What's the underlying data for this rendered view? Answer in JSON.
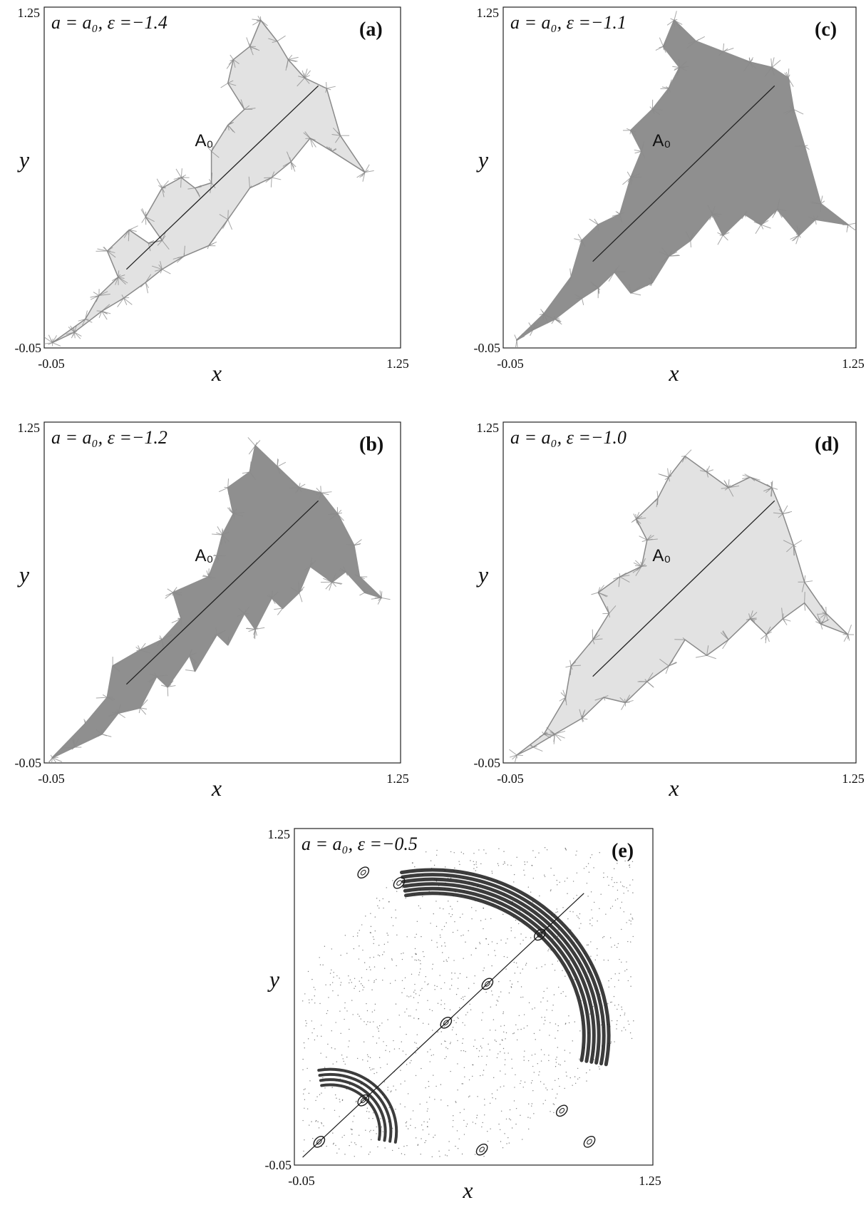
{
  "figure": {
    "note": ""
  },
  "chart_data": [
    {
      "type": "scatter",
      "panel_label": "(a)",
      "annotation": "a = a₀, ε =−1.4",
      "attractor_label": "A₀",
      "xlabel": "x",
      "ylabel": "y",
      "xlim": [
        -0.05,
        1.25
      ],
      "ylim": [
        -0.05,
        1.25
      ],
      "x_ticks": [
        "-0.05",
        "1.25"
      ],
      "y_ticks": [
        "-0.05",
        "1.25"
      ],
      "grid": false,
      "diagonal_segment": {
        "x": [
          0.25,
          0.95
        ],
        "y": [
          0.25,
          0.95
        ]
      },
      "series": [
        {
          "color": "#8a8a8a",
          "filled": false,
          "outline": [
            [
              -0.02,
              -0.03
            ],
            [
              0.1,
              0.06
            ],
            [
              0.15,
              0.15
            ],
            [
              0.22,
              0.22
            ],
            [
              0.18,
              0.32
            ],
            [
              0.26,
              0.4
            ],
            [
              0.33,
              0.35
            ],
            [
              0.38,
              0.36
            ],
            [
              0.32,
              0.45
            ],
            [
              0.38,
              0.56
            ],
            [
              0.45,
              0.6
            ],
            [
              0.5,
              0.56
            ],
            [
              0.56,
              0.58
            ],
            [
              0.56,
              0.7
            ],
            [
              0.62,
              0.8
            ],
            [
              0.68,
              0.86
            ],
            [
              0.62,
              0.96
            ],
            [
              0.64,
              1.05
            ],
            [
              0.7,
              1.1
            ],
            [
              0.74,
              1.2
            ],
            [
              0.8,
              1.12
            ],
            [
              0.84,
              1.05
            ],
            [
              0.9,
              0.98
            ],
            [
              0.98,
              0.94
            ],
            [
              1.03,
              0.76
            ],
            [
              1.12,
              0.62
            ],
            [
              1.0,
              0.7
            ],
            [
              0.92,
              0.75
            ],
            [
              0.85,
              0.66
            ],
            [
              0.78,
              0.6
            ],
            [
              0.7,
              0.56
            ],
            [
              0.62,
              0.44
            ],
            [
              0.55,
              0.34
            ],
            [
              0.46,
              0.3
            ],
            [
              0.38,
              0.25
            ],
            [
              0.32,
              0.2
            ],
            [
              0.24,
              0.14
            ],
            [
              0.16,
              0.09
            ],
            [
              0.06,
              0.01
            ]
          ]
        }
      ]
    },
    {
      "type": "scatter",
      "panel_label": "(b)",
      "annotation": "a = a₀, ε =−1.2",
      "attractor_label": "A₀",
      "xlabel": "x",
      "ylabel": "y",
      "xlim": [
        -0.05,
        1.25
      ],
      "ylim": [
        -0.05,
        1.25
      ],
      "x_ticks": [
        "-0.05",
        "1.25"
      ],
      "y_ticks": [
        "-0.05",
        "1.25"
      ],
      "grid": false,
      "diagonal_segment": {
        "x": [
          0.25,
          0.95
        ],
        "y": [
          0.25,
          0.95
        ]
      },
      "series": [
        {
          "color": "#8a8a8a",
          "filled": true,
          "outline": [
            [
              -0.02,
              -0.03
            ],
            [
              0.1,
              0.1
            ],
            [
              0.18,
              0.2
            ],
            [
              0.2,
              0.32
            ],
            [
              0.3,
              0.38
            ],
            [
              0.38,
              0.42
            ],
            [
              0.45,
              0.5
            ],
            [
              0.42,
              0.6
            ],
            [
              0.55,
              0.66
            ],
            [
              0.58,
              0.74
            ],
            [
              0.6,
              0.82
            ],
            [
              0.64,
              0.9
            ],
            [
              0.62,
              1.0
            ],
            [
              0.7,
              1.06
            ],
            [
              0.72,
              1.16
            ],
            [
              0.8,
              1.08
            ],
            [
              0.88,
              1.0
            ],
            [
              0.96,
              0.98
            ],
            [
              1.02,
              0.9
            ],
            [
              1.08,
              0.78
            ],
            [
              1.1,
              0.66
            ],
            [
              1.18,
              0.58
            ],
            [
              1.12,
              0.6
            ],
            [
              1.05,
              0.68
            ],
            [
              1.0,
              0.64
            ],
            [
              0.92,
              0.7
            ],
            [
              0.88,
              0.6
            ],
            [
              0.82,
              0.54
            ],
            [
              0.78,
              0.58
            ],
            [
              0.72,
              0.46
            ],
            [
              0.68,
              0.52
            ],
            [
              0.62,
              0.4
            ],
            [
              0.58,
              0.44
            ],
            [
              0.5,
              0.3
            ],
            [
              0.48,
              0.36
            ],
            [
              0.4,
              0.24
            ],
            [
              0.36,
              0.28
            ],
            [
              0.3,
              0.16
            ],
            [
              0.22,
              0.14
            ],
            [
              0.16,
              0.06
            ],
            [
              0.06,
              0.01
            ]
          ]
        }
      ]
    },
    {
      "type": "scatter",
      "panel_label": "(c)",
      "annotation": "a = a₀, ε =−1.1",
      "attractor_label": "A₀",
      "xlabel": "x",
      "ylabel": "y",
      "xlim": [
        -0.05,
        1.25
      ],
      "ylim": [
        -0.05,
        1.25
      ],
      "x_ticks": [
        "-0.05",
        "1.25"
      ],
      "y_ticks": [
        "-0.05",
        "1.25"
      ],
      "grid": false,
      "diagonal_segment": {
        "x": [
          0.28,
          0.95
        ],
        "y": [
          0.28,
          0.95
        ]
      },
      "series": [
        {
          "color": "#8a8a8a",
          "filled": true,
          "outline": [
            [
              0.0,
              -0.02
            ],
            [
              0.1,
              0.08
            ],
            [
              0.2,
              0.22
            ],
            [
              0.24,
              0.36
            ],
            [
              0.3,
              0.42
            ],
            [
              0.38,
              0.46
            ],
            [
              0.42,
              0.6
            ],
            [
              0.46,
              0.7
            ],
            [
              0.42,
              0.78
            ],
            [
              0.5,
              0.86
            ],
            [
              0.56,
              0.94
            ],
            [
              0.6,
              1.02
            ],
            [
              0.54,
              1.1
            ],
            [
              0.58,
              1.2
            ],
            [
              0.66,
              1.12
            ],
            [
              0.76,
              1.08
            ],
            [
              0.86,
              1.04
            ],
            [
              0.94,
              1.02
            ],
            [
              1.0,
              0.98
            ],
            [
              1.02,
              0.86
            ],
            [
              1.06,
              0.72
            ],
            [
              1.12,
              0.5
            ],
            [
              1.22,
              0.42
            ],
            [
              1.1,
              0.44
            ],
            [
              1.04,
              0.38
            ],
            [
              0.96,
              0.48
            ],
            [
              0.9,
              0.42
            ],
            [
              0.84,
              0.46
            ],
            [
              0.76,
              0.38
            ],
            [
              0.72,
              0.46
            ],
            [
              0.64,
              0.36
            ],
            [
              0.56,
              0.3
            ],
            [
              0.5,
              0.2
            ],
            [
              0.42,
              0.16
            ],
            [
              0.36,
              0.24
            ],
            [
              0.3,
              0.18
            ],
            [
              0.24,
              0.14
            ],
            [
              0.14,
              0.06
            ],
            [
              0.06,
              0.02
            ]
          ]
        }
      ]
    },
    {
      "type": "scatter",
      "panel_label": "(d)",
      "annotation": "a = a₀, ε =−1.0",
      "attractor_label": "A₀",
      "xlabel": "x",
      "ylabel": "y",
      "xlim": [
        -0.05,
        1.25
      ],
      "ylim": [
        -0.05,
        1.25
      ],
      "x_ticks": [
        "-0.05",
        "1.25"
      ],
      "y_ticks": [
        "-0.05",
        "1.25"
      ],
      "grid": false,
      "diagonal_segment": {
        "x": [
          0.28,
          0.95
        ],
        "y": [
          0.28,
          0.95
        ]
      },
      "series": [
        {
          "color": "#8a8a8a",
          "filled": false,
          "outline": [
            [
              0.0,
              -0.02
            ],
            [
              0.1,
              0.06
            ],
            [
              0.18,
              0.2
            ],
            [
              0.2,
              0.32
            ],
            [
              0.28,
              0.42
            ],
            [
              0.34,
              0.52
            ],
            [
              0.3,
              0.6
            ],
            [
              0.38,
              0.66
            ],
            [
              0.46,
              0.7
            ],
            [
              0.48,
              0.8
            ],
            [
              0.44,
              0.88
            ],
            [
              0.52,
              0.96
            ],
            [
              0.56,
              1.04
            ],
            [
              0.62,
              1.12
            ],
            [
              0.7,
              1.06
            ],
            [
              0.78,
              1.0
            ],
            [
              0.86,
              1.04
            ],
            [
              0.94,
              1.0
            ],
            [
              0.98,
              0.9
            ],
            [
              1.02,
              0.78
            ],
            [
              1.06,
              0.64
            ],
            [
              1.14,
              0.52
            ],
            [
              1.22,
              0.44
            ],
            [
              1.12,
              0.48
            ],
            [
              1.06,
              0.56
            ],
            [
              0.98,
              0.5
            ],
            [
              0.92,
              0.44
            ],
            [
              0.86,
              0.5
            ],
            [
              0.78,
              0.42
            ],
            [
              0.7,
              0.36
            ],
            [
              0.62,
              0.42
            ],
            [
              0.56,
              0.32
            ],
            [
              0.48,
              0.26
            ],
            [
              0.4,
              0.18
            ],
            [
              0.32,
              0.2
            ],
            [
              0.24,
              0.12
            ],
            [
              0.14,
              0.06
            ],
            [
              0.06,
              0.01
            ]
          ]
        }
      ]
    },
    {
      "type": "scatter",
      "panel_label": "(e)",
      "annotation": "a = a₀, ε =−0.5",
      "xlabel": "x",
      "ylabel": "y",
      "xlim": [
        -0.05,
        1.25
      ],
      "ylim": [
        -0.05,
        1.25
      ],
      "x_ticks": [
        "-0.05",
        "1.25"
      ],
      "y_ticks": [
        "-0.05",
        "1.25"
      ],
      "grid": false,
      "series": [
        {
          "color": "#1a1a1a",
          "structure": "invariant curves",
          "diagonal": {
            "x": [
              -0.02,
              1.0
            ],
            "y": [
              -0.02,
              1.0
            ]
          },
          "large_bands": {
            "center": [
              0.45,
              0.45
            ],
            "radius": [
              0.55,
              0.64
            ],
            "angle_range_deg": [
              -10,
              100
            ],
            "count": 6
          },
          "small_bands": {
            "center": [
              0.08,
              0.08
            ],
            "radius": [
              0.18,
              0.24
            ],
            "angle_range_deg": [
              -10,
              100
            ],
            "count": 4
          },
          "islands": [
            [
              0.5,
              0.5
            ],
            [
              0.84,
              0.84
            ],
            [
              0.65,
              0.65
            ],
            [
              0.2,
              0.2
            ],
            [
              0.04,
              0.04
            ],
            [
              0.33,
              1.04
            ],
            [
              0.92,
              0.16
            ],
            [
              1.02,
              0.04
            ],
            [
              0.2,
              1.08
            ],
            [
              0.63,
              0.01
            ]
          ]
        }
      ]
    }
  ]
}
